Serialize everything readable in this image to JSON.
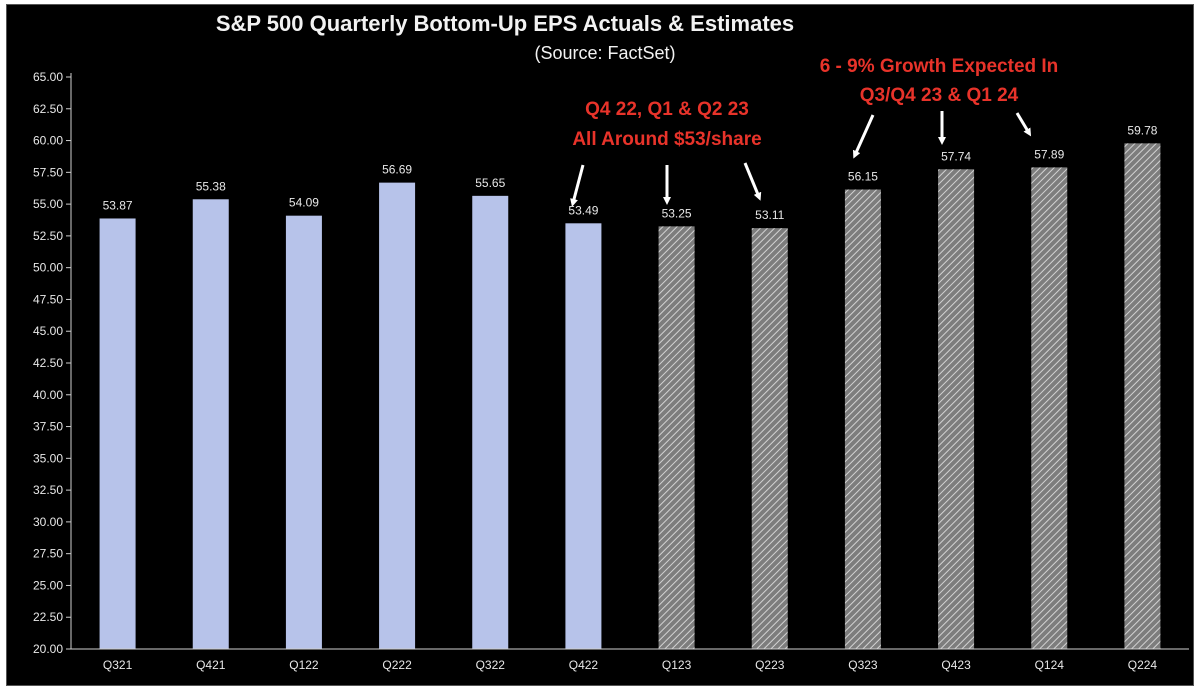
{
  "chart_data": {
    "type": "bar",
    "title": "S&P 500 Quarterly Bottom-Up EPS Actuals & Estimates",
    "subtitle": "(Source: FactSet)",
    "xlabel": "",
    "ylabel": "",
    "categories": [
      "Q321",
      "Q421",
      "Q122",
      "Q222",
      "Q322",
      "Q422",
      "Q123",
      "Q223",
      "Q323",
      "Q423",
      "Q124",
      "Q224"
    ],
    "values": [
      53.87,
      55.38,
      54.09,
      56.69,
      55.65,
      53.49,
      53.25,
      53.11,
      56.15,
      57.74,
      57.89,
      59.78
    ],
    "value_labels": [
      "53.87",
      "55.38",
      "54.09",
      "56.69",
      "55.65",
      "53.49",
      "53.25",
      "53.11",
      "56.15",
      "57.74",
      "57.89",
      "59.78"
    ],
    "bar_kind": [
      "actual",
      "actual",
      "actual",
      "actual",
      "actual",
      "actual",
      "estimate",
      "estimate",
      "estimate",
      "estimate",
      "estimate",
      "estimate"
    ],
    "ylim": [
      20,
      65
    ],
    "yticks": [
      "20.00",
      "22.50",
      "25.00",
      "27.50",
      "30.00",
      "32.50",
      "35.00",
      "37.50",
      "40.00",
      "42.50",
      "45.00",
      "47.50",
      "50.00",
      "52.50",
      "55.00",
      "57.50",
      "60.00",
      "62.50",
      "65.00"
    ],
    "grid": false,
    "colors": {
      "background": "#000000",
      "actual_bar": "#b7c3ea",
      "estimate_bar": "#8f8f8f",
      "estimate_hatch": "#d2d2d2",
      "annotation": "#e8332a",
      "text": "#f2f2f2"
    },
    "annotations": [
      {
        "lines": [
          "Q4 22, Q1 & Q2 23",
          "All Around $53/share"
        ],
        "arrow_targets": [
          "Q422",
          "Q123",
          "Q223"
        ]
      },
      {
        "lines": [
          "6 - 9% Growth Expected In",
          "Q3/Q4 23 & Q1 24"
        ],
        "arrow_targets": [
          "Q323",
          "Q423",
          "Q124"
        ]
      }
    ]
  }
}
